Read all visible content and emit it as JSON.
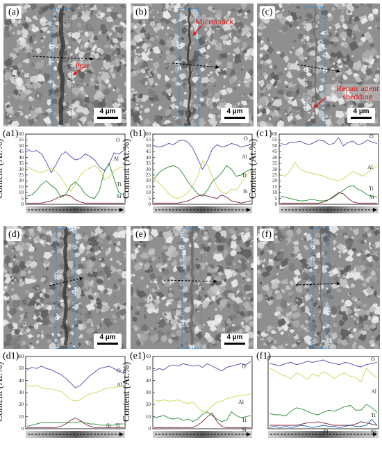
{
  "figure": {
    "y_axis_title": "Content (At.%)",
    "scale_bar_text": "4 µm",
    "colors": {
      "O": "#5b3fb0",
      "Al": "#c8d84a",
      "Ti": "#1f8a2a",
      "Si": "#7a1a34",
      "Ni": "#1e5cb3",
      "annotation": "#e01010",
      "dotted_box": "#2a8ad8"
    }
  },
  "sem_panels": [
    {
      "label": "(a)",
      "annotations": [
        {
          "text": "Pore"
        }
      ],
      "has_scale_bar": true
    },
    {
      "label": "(b)",
      "annotations": [
        {
          "text": "Microcrack"
        }
      ],
      "has_scale_bar": true
    },
    {
      "label": "(c)",
      "annotations": [
        {
          "text": "Repair agent shedding"
        }
      ],
      "has_scale_bar": true
    },
    {
      "label": "(d)",
      "annotations": [],
      "has_scale_bar": true
    },
    {
      "label": "(e)",
      "annotations": [],
      "has_scale_bar": true
    },
    {
      "label": "(f)",
      "annotations": [],
      "has_scale_bar": false
    }
  ],
  "chart_data": [
    {
      "panel": "(a1)",
      "type": "line",
      "ylim": [
        0,
        60
      ],
      "y_ticks": [
        0,
        5,
        10,
        15,
        20,
        25,
        30,
        35,
        40,
        45,
        50,
        55,
        60
      ],
      "ylabel": "Content (At.%)",
      "x": [
        0,
        1,
        2,
        3,
        4,
        5,
        6,
        7,
        8,
        9,
        10,
        11,
        12,
        13,
        14,
        15,
        16,
        17,
        18,
        19,
        20
      ],
      "series": [
        {
          "name": "O",
          "values": [
            47,
            45,
            46,
            43,
            36,
            27,
            34,
            42,
            45,
            41,
            38,
            39,
            43,
            41,
            38,
            32,
            29,
            34,
            44,
            43,
            46
          ]
        },
        {
          "name": "Al",
          "values": [
            32,
            30,
            28,
            27,
            29,
            31,
            28,
            23,
            16,
            11,
            17,
            25,
            29,
            31,
            33,
            30,
            21,
            23,
            29,
            31,
            32
          ]
        },
        {
          "name": "Ti",
          "values": [
            7,
            8,
            12,
            17,
            20,
            16,
            13,
            6,
            8,
            16,
            19,
            15,
            9,
            6,
            5,
            12,
            28,
            35,
            22,
            10,
            8
          ]
        },
        {
          "name": "Si",
          "values": [
            1,
            1,
            1,
            1,
            2,
            3,
            5,
            7,
            8,
            7,
            4,
            2,
            1,
            1,
            1,
            1,
            1,
            1,
            1,
            1,
            1
          ]
        }
      ]
    },
    {
      "panel": "(b1)",
      "type": "line",
      "ylim": [
        0,
        60
      ],
      "y_ticks": [
        0,
        5,
        10,
        15,
        20,
        25,
        30,
        35,
        40,
        45,
        50,
        55,
        60
      ],
      "ylabel": "Content (At.%)",
      "x": [
        0,
        1,
        2,
        3,
        4,
        5,
        6,
        7,
        8,
        9,
        10,
        11,
        12,
        13,
        14,
        15,
        16,
        17,
        18,
        19,
        20
      ],
      "series": [
        {
          "name": "O",
          "values": [
            50,
            49,
            50,
            52,
            51,
            54,
            55,
            53,
            48,
            39,
            30,
            37,
            47,
            51,
            49,
            50,
            52,
            51,
            49,
            50,
            51
          ]
        },
        {
          "name": "Al",
          "values": [
            22,
            18,
            14,
            9,
            6,
            5,
            7,
            10,
            16,
            24,
            37,
            34,
            24,
            15,
            10,
            9,
            13,
            12,
            18,
            24,
            29
          ]
        },
        {
          "name": "Ti",
          "values": [
            22,
            27,
            30,
            32,
            33,
            31,
            26,
            19,
            14,
            9,
            7,
            12,
            19,
            23,
            27,
            33,
            30,
            24,
            25,
            28,
            30
          ]
        },
        {
          "name": "Si",
          "values": [
            1,
            1,
            1,
            1,
            1,
            1,
            2,
            3,
            5,
            7,
            8,
            7,
            6,
            5,
            8,
            6,
            3,
            2,
            1,
            2,
            3
          ]
        }
      ]
    },
    {
      "panel": "(c1)",
      "type": "line",
      "ylim": [
        0,
        60
      ],
      "y_ticks": [
        0,
        5,
        10,
        15,
        20,
        25,
        30,
        35,
        40,
        45,
        50,
        55,
        60
      ],
      "ylabel": "Content (At.%)",
      "x": [
        0,
        1,
        2,
        3,
        4,
        5,
        6,
        7,
        8,
        9,
        10,
        11,
        12,
        13,
        14,
        15,
        16,
        17,
        18,
        19,
        20
      ],
      "series": [
        {
          "name": "O",
          "values": [
            52,
            51,
            53,
            53,
            54,
            52,
            51,
            53,
            55,
            54,
            51,
            52,
            57,
            50,
            53,
            54,
            51,
            52,
            55,
            53,
            52
          ]
        },
        {
          "name": "Al",
          "values": [
            25,
            24,
            29,
            36,
            30,
            28,
            27,
            26,
            25,
            24,
            22,
            21,
            20,
            22,
            25,
            28,
            26,
            24,
            27,
            30,
            33
          ]
        },
        {
          "name": "Ti",
          "values": [
            7,
            6,
            5,
            4,
            3,
            3,
            4,
            4,
            3,
            3,
            4,
            6,
            9,
            12,
            15,
            16,
            13,
            11,
            8,
            7,
            6
          ]
        },
        {
          "name": "Si",
          "values": [
            1,
            1,
            1,
            1,
            1,
            1,
            1,
            1,
            1,
            2,
            4,
            7,
            10,
            9,
            5,
            2,
            1,
            1,
            1,
            1,
            1
          ]
        }
      ]
    },
    {
      "panel": "(d1)",
      "type": "line",
      "ylim": [
        0,
        60
      ],
      "y_ticks": [
        0,
        10,
        20,
        30,
        40,
        50,
        60
      ],
      "ylabel": "Content (At.%)",
      "x": [
        0,
        1,
        2,
        3,
        4,
        5,
        6,
        7,
        8,
        9,
        10,
        11,
        12,
        13,
        14,
        15,
        16,
        17,
        18,
        19,
        20
      ],
      "series": [
        {
          "name": "O",
          "values": [
            49,
            51,
            50,
            52,
            50,
            49,
            47,
            45,
            42,
            38,
            34,
            36,
            40,
            44,
            47,
            50,
            51,
            52,
            50,
            48,
            46
          ]
        },
        {
          "name": "Al",
          "values": [
            36,
            35,
            36,
            34,
            33,
            33,
            32,
            31,
            28,
            24,
            23,
            24,
            27,
            29,
            30,
            31,
            33,
            34,
            34,
            35,
            36
          ]
        },
        {
          "name": "Ti",
          "values": [
            2,
            3,
            4,
            5,
            5,
            5,
            5,
            5,
            5,
            5,
            5,
            6,
            5,
            4,
            4,
            3,
            3,
            3,
            3,
            4,
            4
          ]
        },
        {
          "name": "Si",
          "values": [
            1,
            1,
            1,
            1,
            1,
            1,
            1,
            2,
            4,
            7,
            9,
            7,
            4,
            2,
            1,
            1,
            1,
            1,
            1,
            1,
            1
          ]
        }
      ]
    },
    {
      "panel": "(e1)",
      "type": "line",
      "ylim": [
        0,
        60
      ],
      "y_ticks": [
        0,
        10,
        20,
        30,
        40,
        50,
        60
      ],
      "ylabel": "Content (At.%)",
      "x": [
        0,
        1,
        2,
        3,
        4,
        5,
        6,
        7,
        8,
        9,
        10,
        11,
        12,
        13,
        14,
        15,
        16,
        17,
        18,
        19,
        20
      ],
      "series": [
        {
          "name": "O",
          "values": [
            48,
            50,
            49,
            52,
            53,
            52,
            54,
            53,
            52,
            53,
            51,
            54,
            52,
            50,
            48,
            51,
            52,
            53,
            54,
            53,
            56
          ]
        },
        {
          "name": "Al",
          "values": [
            24,
            23,
            24,
            23,
            23,
            24,
            22,
            21,
            22,
            18,
            14,
            15,
            19,
            22,
            23,
            25,
            26,
            27,
            28,
            28,
            29
          ]
        },
        {
          "name": "Ti",
          "values": [
            9,
            10,
            11,
            9,
            8,
            9,
            7,
            8,
            6,
            8,
            12,
            14,
            11,
            8,
            6,
            7,
            14,
            11,
            9,
            10,
            11
          ]
        },
        {
          "name": "Si",
          "values": [
            1,
            1,
            1,
            1,
            1,
            1,
            1,
            1,
            1,
            3,
            6,
            10,
            13,
            6,
            2,
            1,
            1,
            1,
            1,
            1,
            1
          ]
        }
      ]
    },
    {
      "panel": "(f1)",
      "type": "line",
      "series": [
        {
          "name": "O",
          "values": [
            56,
            55,
            54,
            56,
            57,
            55,
            56,
            58,
            57,
            58,
            59,
            57,
            56,
            55,
            57,
            56,
            54,
            53,
            55,
            56,
            57
          ]
        },
        {
          "name": "Al",
          "values": [
            52,
            50,
            47,
            45,
            43,
            48,
            46,
            42,
            47,
            45,
            49,
            47,
            43,
            46,
            48,
            45,
            44,
            40,
            52,
            47,
            44
          ]
        },
        {
          "name": "Ti",
          "values": [
            13,
            12,
            12,
            11,
            15,
            18,
            17,
            15,
            13,
            12,
            14,
            16,
            15,
            17,
            19,
            20,
            16,
            16,
            21,
            18,
            14
          ]
        },
        {
          "name": "Si",
          "values": [
            3,
            3,
            3,
            3,
            3,
            3,
            4,
            5,
            5,
            6,
            5,
            4,
            3,
            3,
            3,
            3,
            4,
            6,
            5,
            4,
            3
          ]
        },
        {
          "name": "Ni",
          "values": [
            1,
            2,
            1,
            2,
            1,
            2,
            3,
            2,
            1,
            2,
            3,
            2,
            2,
            1,
            2,
            3,
            2,
            2,
            3,
            8,
            3
          ]
        }
      ]
    }
  ]
}
